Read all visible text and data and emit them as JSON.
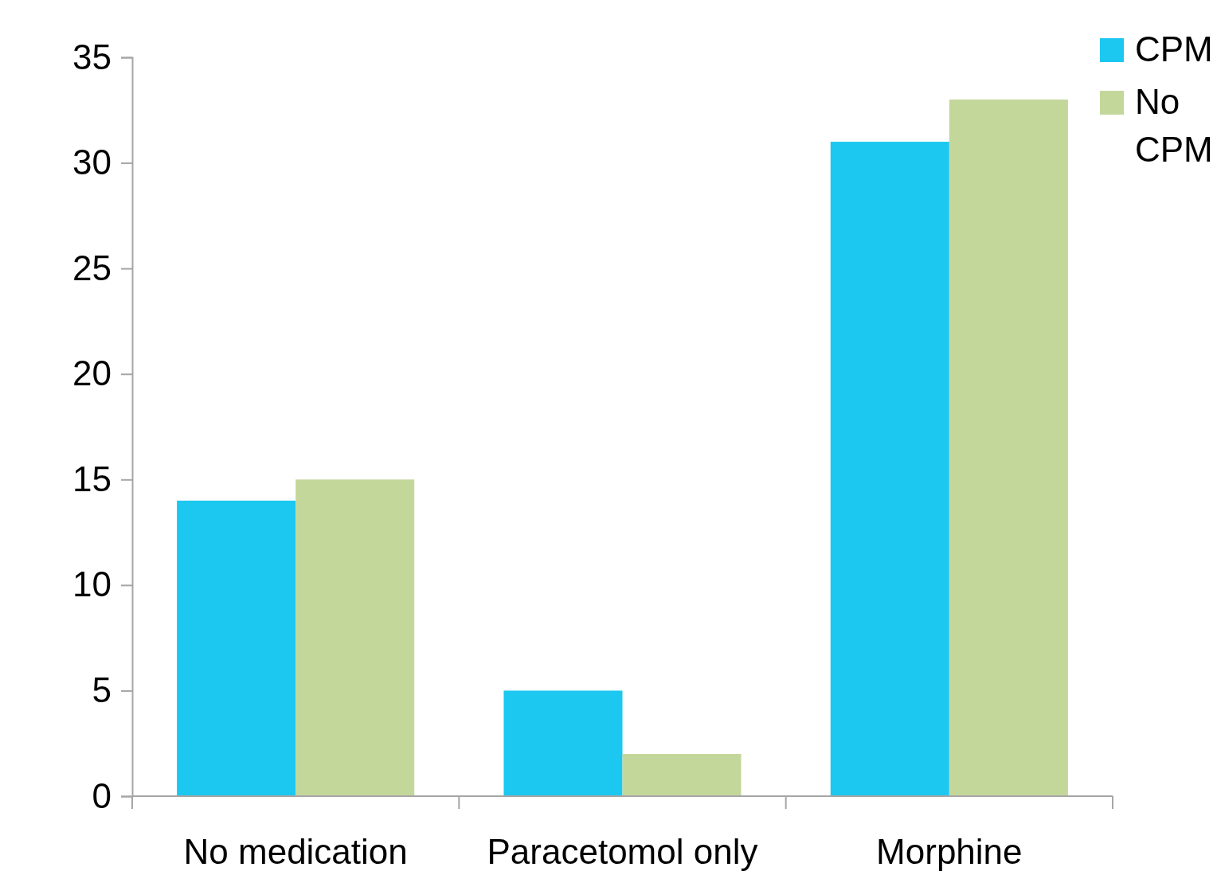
{
  "chart_data": {
    "type": "bar",
    "categories": [
      "No medication",
      "Paracetomol only",
      "Morphine"
    ],
    "series": [
      {
        "name": "CPM",
        "color": "#1cc7f0",
        "values": [
          14,
          5,
          31
        ]
      },
      {
        "name": "No CPM",
        "color": "#c4d79b",
        "values": [
          15,
          2,
          33
        ]
      }
    ],
    "ylim": [
      0,
      35
    ],
    "yticks": [
      0,
      5,
      10,
      15,
      20,
      25,
      30,
      35
    ],
    "grid": false,
    "legend": "top right"
  }
}
